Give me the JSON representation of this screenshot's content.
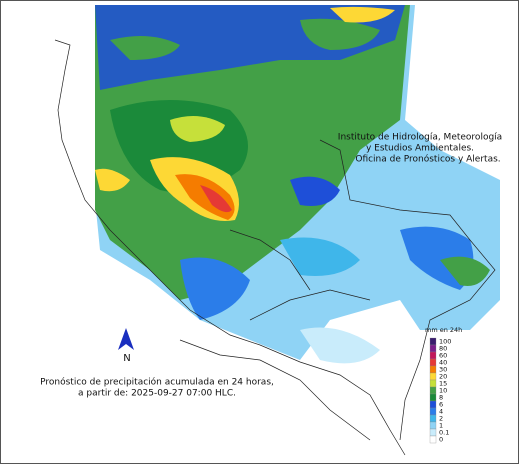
{
  "institute": {
    "lines": [
      "Instituto de Hidrología, Meteorología",
      "y Estudios Ambientales.",
      "Oficina de Pronósticos y Alertas."
    ]
  },
  "forecast": {
    "lines": [
      "Pronóstico de precipitación acumulada en 24 horas,",
      "a partir de: 2025-09-27 07:00 HLC."
    ]
  },
  "north": "N",
  "legend": {
    "title": "mm en 24h",
    "items": [
      {
        "value": 100,
        "color": "#3b1d6e"
      },
      {
        "value": 80,
        "color": "#7a1f8a"
      },
      {
        "value": 60,
        "color": "#c2185b"
      },
      {
        "value": 40,
        "color": "#e53935"
      },
      {
        "value": 30,
        "color": "#f57c00"
      },
      {
        "value": 20,
        "color": "#fdd835"
      },
      {
        "value": 15,
        "color": "#c6e03a"
      },
      {
        "value": 10,
        "color": "#43a047"
      },
      {
        "value": 8,
        "color": "#1b8a3a"
      },
      {
        "value": 6,
        "color": "#1e4fd8"
      },
      {
        "value": 4,
        "color": "#2b7de9"
      },
      {
        "value": 2,
        "color": "#3fb6ea"
      },
      {
        "value": 1,
        "color": "#8fd3f5"
      },
      {
        "value": 0.1,
        "color": "#c9ecfb"
      },
      {
        "value": 0,
        "color": "#ffffff"
      }
    ]
  }
}
